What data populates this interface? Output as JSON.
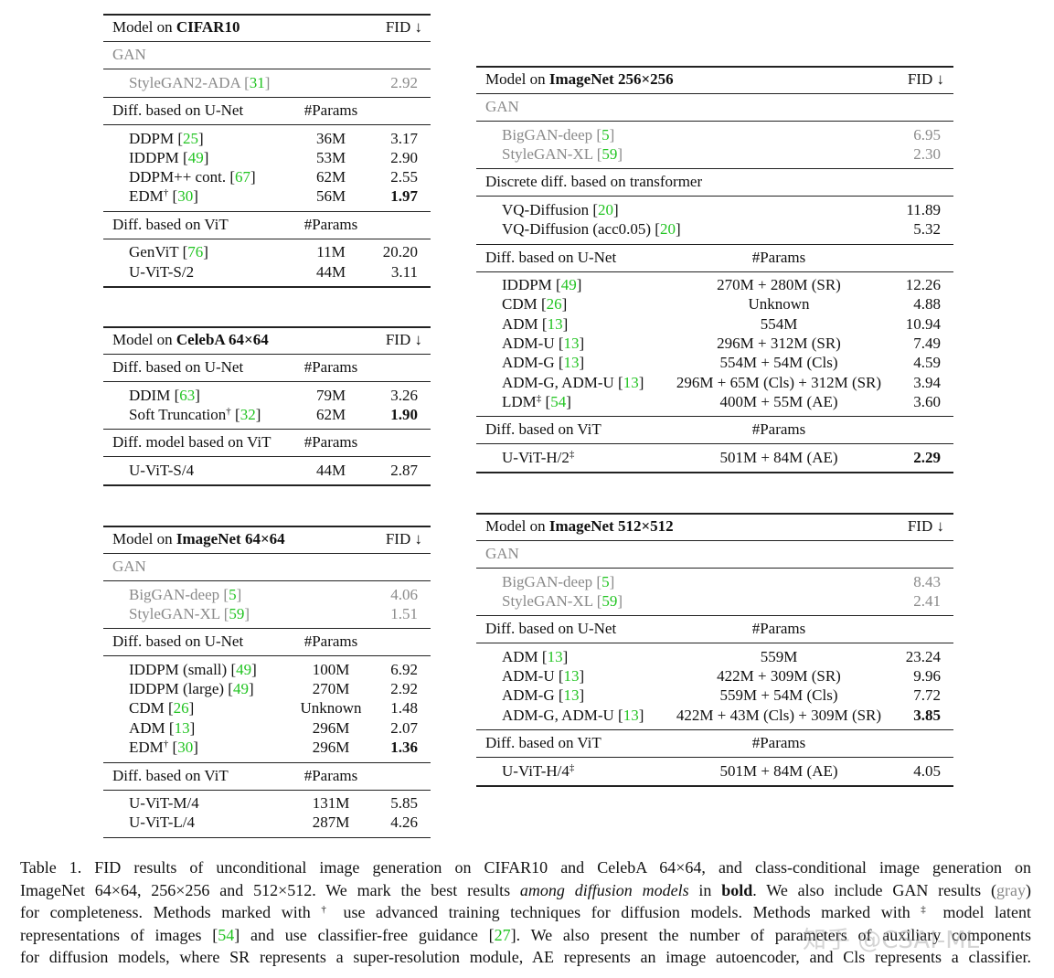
{
  "tables": [
    {
      "header": {
        "title": [
          "Model on ",
          {
            "b": "CIFAR10"
          }
        ],
        "fid": "FID ↓"
      },
      "sections": [
        {
          "title": "GAN",
          "gray": true,
          "rows": [
            {
              "name": [
                "StyleGAN2-ADA [",
                {
                  "cite": "31"
                },
                "]"
              ],
              "fid": "2.92"
            }
          ]
        },
        {
          "title": "Diff. based on U-Net",
          "params_header": "#Params",
          "rows": [
            {
              "name": [
                "DDPM [",
                {
                  "cite": "25"
                },
                "]"
              ],
              "params": "36M",
              "fid": "3.17"
            },
            {
              "name": [
                "IDDPM [",
                {
                  "cite": "49"
                },
                "]"
              ],
              "params": "53M",
              "fid": "2.90"
            },
            {
              "name": [
                "DDPM++ cont. [",
                {
                  "cite": "67"
                },
                "]"
              ],
              "params": "62M",
              "fid": "2.55"
            },
            {
              "name": [
                "EDM",
                {
                  "sup": "†"
                },
                " [",
                {
                  "cite": "30"
                },
                "]"
              ],
              "params": "56M",
              "fid": "1.97",
              "bold": true
            }
          ]
        },
        {
          "title": "Diff. based on ViT",
          "params_header": "#Params",
          "rows": [
            {
              "name": [
                "GenViT [",
                {
                  "cite": "76"
                },
                "]"
              ],
              "params": "11M",
              "fid": "20.20"
            },
            {
              "name": [
                "U-ViT-S/2"
              ],
              "params": "44M",
              "fid": "3.11"
            }
          ]
        }
      ]
    },
    {
      "header": {
        "title": [
          "Model on ",
          {
            "b": "CelebA 64×64"
          }
        ],
        "fid": "FID ↓"
      },
      "sections": [
        {
          "title": "Diff. based on U-Net",
          "params_header": "#Params",
          "rows": [
            {
              "name": [
                "DDIM [",
                {
                  "cite": "63"
                },
                "]"
              ],
              "params": "79M",
              "fid": "3.26"
            },
            {
              "name": [
                "Soft Truncation",
                {
                  "sup": "†"
                },
                " [",
                {
                  "cite": "32"
                },
                "]"
              ],
              "params": "62M",
              "fid": "1.90",
              "bold": true
            }
          ]
        },
        {
          "title": "Diff. model based on ViT",
          "params_header": "#Params",
          "rows": [
            {
              "name": [
                "U-ViT-S/4"
              ],
              "params": "44M",
              "fid": "2.87"
            }
          ]
        }
      ]
    },
    {
      "header": {
        "title": [
          "Model on ",
          {
            "b": "ImageNet 64×64"
          }
        ],
        "fid": "FID ↓"
      },
      "sections": [
        {
          "title": "GAN",
          "gray": true,
          "rows": [
            {
              "name": [
                "BigGAN-deep [",
                {
                  "cite": "5"
                },
                "]"
              ],
              "fid": "4.06"
            },
            {
              "name": [
                "StyleGAN-XL [",
                {
                  "cite": "59"
                },
                "]"
              ],
              "fid": "1.51"
            }
          ]
        },
        {
          "title": "Diff. based on U-Net",
          "params_header": "#Params",
          "rows": [
            {
              "name": [
                "IDDPM (small) [",
                {
                  "cite": "49"
                },
                "]"
              ],
              "params": "100M",
              "fid": "6.92"
            },
            {
              "name": [
                "IDDPM (large) [",
                {
                  "cite": "49"
                },
                "]"
              ],
              "params": "270M",
              "fid": "2.92"
            },
            {
              "name": [
                "CDM [",
                {
                  "cite": "26"
                },
                "]"
              ],
              "params": "Unknown",
              "fid": "1.48"
            },
            {
              "name": [
                "ADM [",
                {
                  "cite": "13"
                },
                "]"
              ],
              "params": "296M",
              "fid": "2.07"
            },
            {
              "name": [
                "EDM",
                {
                  "sup": "†"
                },
                " [",
                {
                  "cite": "30"
                },
                "]"
              ],
              "params": "296M",
              "fid": "1.36",
              "bold": true
            }
          ]
        },
        {
          "title": "Diff. based on ViT",
          "params_header": "#Params",
          "rows": [
            {
              "name": [
                "U-ViT-M/4"
              ],
              "params": "131M",
              "fid": "5.85"
            },
            {
              "name": [
                "U-ViT-L/4"
              ],
              "params": "287M",
              "fid": "4.26"
            }
          ]
        }
      ]
    },
    {
      "header": {
        "title": [
          "Model on ",
          {
            "b": "ImageNet 256×256"
          }
        ],
        "fid": "FID ↓"
      },
      "sections": [
        {
          "title": "GAN",
          "gray": true,
          "rows": [
            {
              "name": [
                "BigGAN-deep [",
                {
                  "cite": "5"
                },
                "]"
              ],
              "fid": "6.95"
            },
            {
              "name": [
                "StyleGAN-XL [",
                {
                  "cite": "59"
                },
                "]"
              ],
              "fid": "2.30"
            }
          ]
        },
        {
          "title": "Discrete diff. based on transformer",
          "rows": [
            {
              "name": [
                "VQ-Diffusion [",
                {
                  "cite": "20"
                },
                "]"
              ],
              "fid": "11.89"
            },
            {
              "name": [
                "VQ-Diffusion (acc0.05) [",
                {
                  "cite": "20"
                },
                "]"
              ],
              "fid": "5.32"
            }
          ]
        },
        {
          "title": "Diff. based on U-Net",
          "params_header": "#Params",
          "rows": [
            {
              "name": [
                "IDDPM [",
                {
                  "cite": "49"
                },
                "]"
              ],
              "params": "270M + 280M (SR)",
              "fid": "12.26"
            },
            {
              "name": [
                "CDM [",
                {
                  "cite": "26"
                },
                "]"
              ],
              "params": "Unknown",
              "fid": "4.88"
            },
            {
              "name": [
                "ADM [",
                {
                  "cite": "13"
                },
                "]"
              ],
              "params": "554M",
              "fid": "10.94"
            },
            {
              "name": [
                "ADM-U [",
                {
                  "cite": "13"
                },
                "]"
              ],
              "params": "296M + 312M (SR)",
              "fid": "7.49"
            },
            {
              "name": [
                "ADM-G [",
                {
                  "cite": "13"
                },
                "]"
              ],
              "params": "554M + 54M (Cls)",
              "fid": "4.59"
            },
            {
              "name": [
                "ADM-G, ADM-U [",
                {
                  "cite": "13"
                },
                "]"
              ],
              "params": "296M + 65M (Cls) + 312M (SR)",
              "fid": "3.94"
            },
            {
              "name": [
                "LDM",
                {
                  "sup": "‡"
                },
                " [",
                {
                  "cite": "54"
                },
                "]"
              ],
              "params": "400M + 55M (AE)",
              "fid": "3.60"
            }
          ]
        },
        {
          "title": "Diff. based on ViT",
          "params_header": "#Params",
          "rows": [
            {
              "name": [
                "U-ViT-H/2",
                {
                  "sup": "‡"
                }
              ],
              "params": "501M + 84M (AE)",
              "fid": "2.29",
              "bold": true
            }
          ]
        }
      ]
    },
    {
      "header": {
        "title": [
          "Model on ",
          {
            "b": "ImageNet 512×512"
          }
        ],
        "fid": "FID ↓"
      },
      "sections": [
        {
          "title": "GAN",
          "gray": true,
          "rows": [
            {
              "name": [
                "BigGAN-deep [",
                {
                  "cite": "5"
                },
                "]"
              ],
              "fid": "8.43"
            },
            {
              "name": [
                "StyleGAN-XL [",
                {
                  "cite": "59"
                },
                "]"
              ],
              "fid": "2.41"
            }
          ]
        },
        {
          "title": "Diff. based on U-Net",
          "params_header": "#Params",
          "rows": [
            {
              "name": [
                "ADM [",
                {
                  "cite": "13"
                },
                "]"
              ],
              "params": "559M",
              "fid": "23.24"
            },
            {
              "name": [
                "ADM-U [",
                {
                  "cite": "13"
                },
                "]"
              ],
              "params": "422M + 309M (SR)",
              "fid": "9.96"
            },
            {
              "name": [
                "ADM-G [",
                {
                  "cite": "13"
                },
                "]"
              ],
              "params": "559M + 54M (Cls)",
              "fid": "7.72"
            },
            {
              "name": [
                "ADM-G, ADM-U [",
                {
                  "cite": "13"
                },
                "]"
              ],
              "params": "422M + 43M (Cls) + 309M (SR)",
              "fid": "3.85",
              "bold": true
            }
          ]
        },
        {
          "title": "Diff. based on ViT",
          "params_header": "#Params",
          "rows": [
            {
              "name": [
                "U-ViT-H/4",
                {
                  "sup": "‡"
                }
              ],
              "params": "501M + 84M (AE)",
              "fid": "4.05"
            }
          ]
        }
      ]
    }
  ],
  "caption": {
    "lines": [
      [
        "Table 1.  FID results of unconditional image generation on CIFAR10 and CelebA 64×64, and class-conditional image generation on"
      ],
      [
        "ImageNet 64×64, 256×256 and 512×512. We mark the best results ",
        {
          "i": "among diffusion models"
        },
        " in ",
        {
          "b": "bold"
        },
        ". We also include GAN results (",
        {
          "graytxt": "gray"
        },
        ")"
      ],
      [
        "for completeness. Methods marked with ",
        {
          "sup": "†"
        },
        " use advanced training techniques for diffusion models. Methods marked with ",
        {
          "sup": "‡"
        },
        " model latent"
      ],
      [
        "representations of images [",
        {
          "cite": "54"
        },
        "] and use classifier-free guidance [",
        {
          "cite": "27"
        },
        "]. We also present the number of parameters of auxiliary components"
      ],
      [
        "for diffusion models, where SR represents a super-resolution module, AE represents an image autoencoder, and Cls represents a classifier."
      ]
    ]
  },
  "watermark": "知乎 @CSAI-ML"
}
